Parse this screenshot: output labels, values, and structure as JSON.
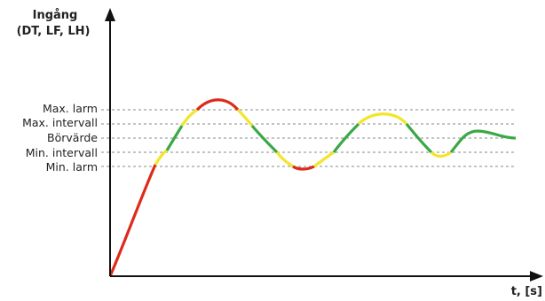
{
  "chart_data": {
    "type": "line",
    "ylabel": [
      "Ingång",
      "(DT, LF, LH)"
    ],
    "xlabel": "t, [s]",
    "levels": [
      {
        "id": "max-larm",
        "label": "Max. larm"
      },
      {
        "id": "max-intervall",
        "label": "Max. intervall"
      },
      {
        "id": "borvarde",
        "label": "Börvärde"
      },
      {
        "id": "min-intervall",
        "label": "Min. intervall"
      },
      {
        "id": "min-larm",
        "label": "Min. larm"
      }
    ],
    "zone_colors": {
      "alarm": "#dd2a1b",
      "warning": "#f2e52a",
      "ok": "#3aa845"
    },
    "axis_color": "#111111",
    "grid": "dashed reference lines at each level"
  }
}
